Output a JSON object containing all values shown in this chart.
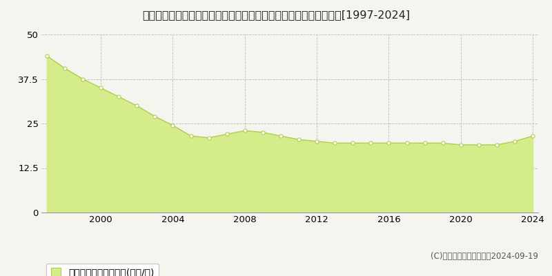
{
  "title": "千葉県千葉市緑区あすみが丘５丁目６０番６　基準地価　地価推移[1997-2024]",
  "years": [
    1997,
    1998,
    1999,
    2000,
    2001,
    2002,
    2003,
    2004,
    2005,
    2006,
    2007,
    2008,
    2009,
    2010,
    2011,
    2012,
    2013,
    2014,
    2015,
    2016,
    2017,
    2018,
    2019,
    2020,
    2021,
    2022,
    2023,
    2024
  ],
  "values": [
    44.0,
    40.5,
    37.5,
    35.0,
    32.5,
    30.0,
    27.0,
    24.5,
    21.5,
    21.0,
    22.0,
    23.0,
    22.5,
    21.5,
    20.5,
    20.0,
    19.5,
    19.5,
    19.5,
    19.5,
    19.5,
    19.5,
    19.5,
    19.0,
    19.0,
    19.0,
    20.0,
    21.5
  ],
  "fill_color": "#d4ed8a",
  "line_color": "#b0cc50",
  "marker_facecolor": "#ffffff",
  "marker_edgecolor": "#b0cc50",
  "bg_color": "#f5f5f0",
  "plot_bg_color": "#f5f5f0",
  "grid_color": "#bbbbbb",
  "ylim": [
    0,
    50
  ],
  "yticks": [
    0,
    12.5,
    25,
    37.5,
    50
  ],
  "xticks": [
    2000,
    2004,
    2008,
    2012,
    2016,
    2020,
    2024
  ],
  "legend_label": "基準地価　平均嵪単価(万円/嵪)",
  "copyright_text": "(C)土地価格ドットコム　2024-09-19",
  "title_fontsize": 11.5,
  "axis_fontsize": 9.5,
  "legend_fontsize": 9.5,
  "copyright_fontsize": 8.5
}
